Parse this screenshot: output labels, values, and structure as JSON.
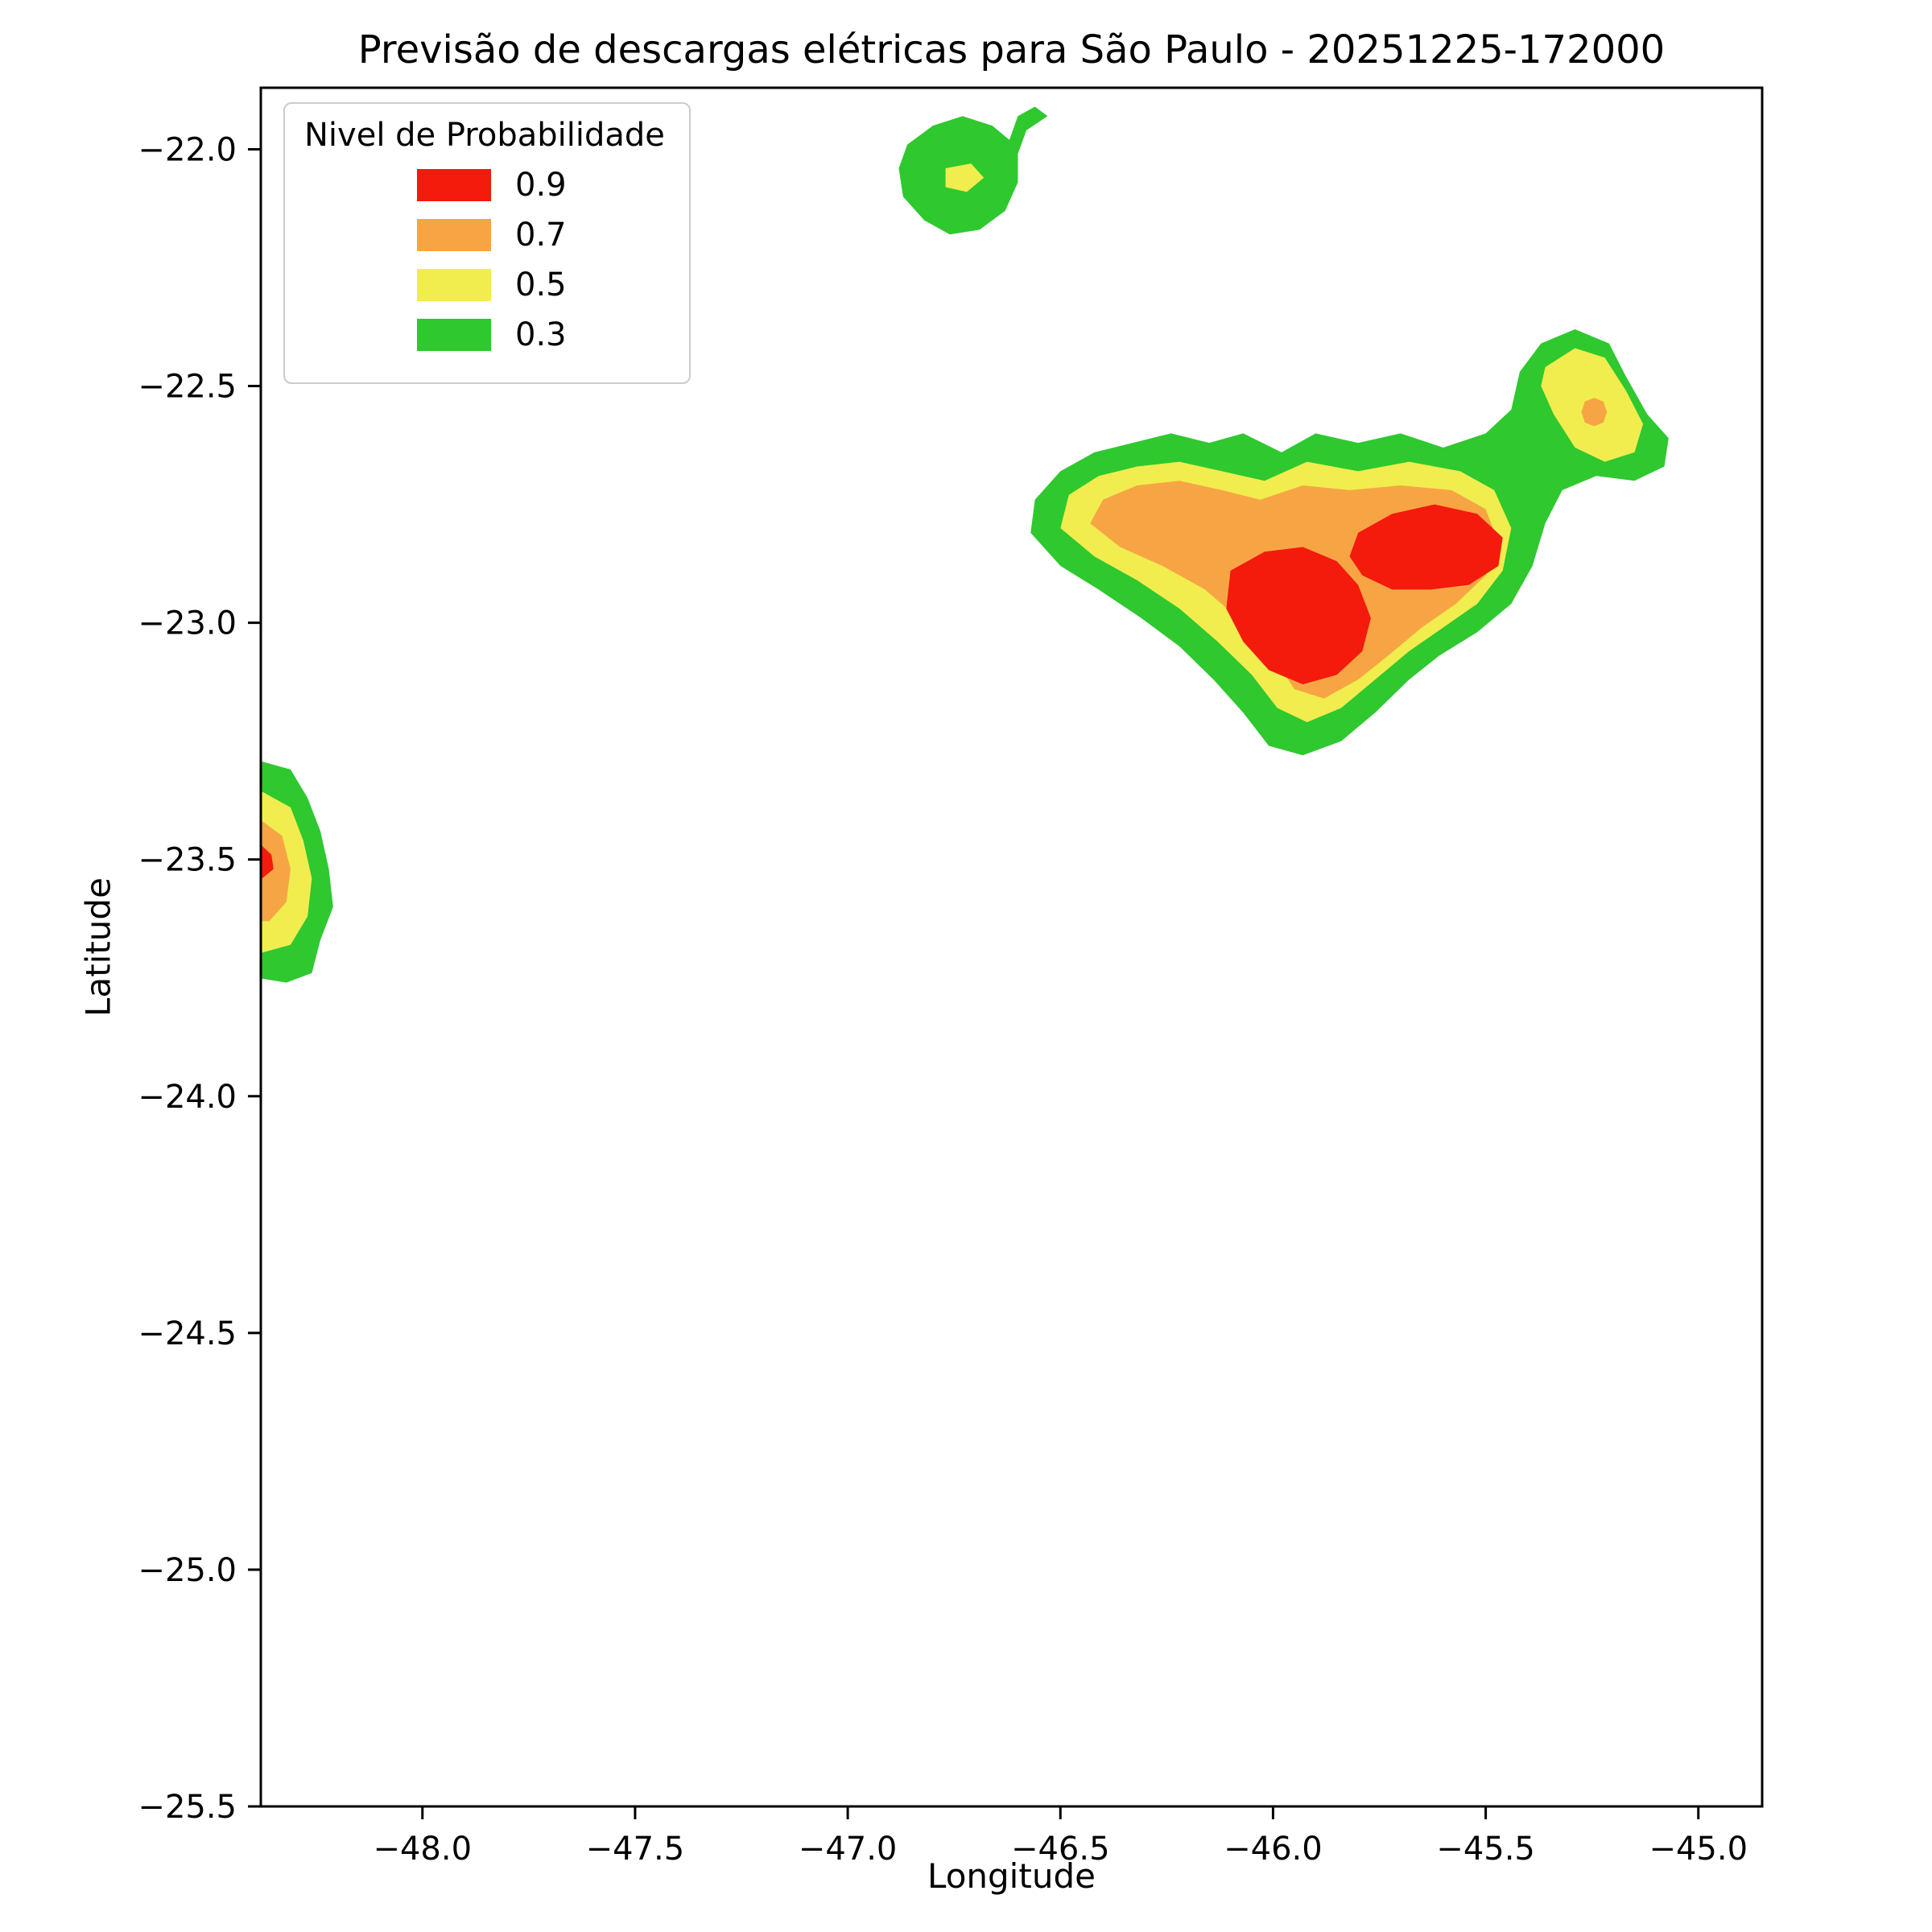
{
  "chart_data": {
    "type": "filled_contour",
    "title": "Previsão de descargas elétricas para São Paulo - 20251225-172000",
    "xlabel": "Longitude",
    "ylabel": "Latitude",
    "xlim": [
      -48.38,
      -44.85
    ],
    "ylim": [
      -25.5,
      -21.87
    ],
    "xticks": [
      -48.0,
      -47.5,
      -47.0,
      -46.5,
      -46.0,
      -45.5,
      -45.0
    ],
    "yticks": [
      -22.0,
      -22.5,
      -23.0,
      -23.5,
      -24.0,
      -24.5,
      -25.0,
      -25.5
    ],
    "xtick_labels": [
      "−48.0",
      "−47.5",
      "−47.0",
      "−46.5",
      "−46.0",
      "−45.5",
      "−45.0"
    ],
    "ytick_labels": [
      "−22.0",
      "−22.5",
      "−23.0",
      "−23.5",
      "−24.0",
      "−24.5",
      "−25.0",
      "−25.5"
    ],
    "grid": false,
    "background": "#ffffff",
    "legend": {
      "title": "Nivel de Probabilidade",
      "position": "upper left",
      "entries": [
        {
          "label": "0.9",
          "color": "#F41A0C"
        },
        {
          "label": "0.7",
          "color": "#F7A544"
        },
        {
          "label": "0.5",
          "color": "#F1ED4E"
        },
        {
          "label": "0.3",
          "color": "#2FC82F"
        }
      ]
    },
    "levels": {
      "0.3": "#2FC82F",
      "0.5": "#F1ED4E",
      "0.7": "#F7A544",
      "0.9": "#F41A0C"
    },
    "regions": [
      {
        "name": "north-cell-green",
        "level": "0.3",
        "points": [
          [
            -46.88,
            -22.04
          ],
          [
            -46.86,
            -21.99
          ],
          [
            -46.8,
            -21.95
          ],
          [
            -46.73,
            -21.93
          ],
          [
            -46.66,
            -21.95
          ],
          [
            -46.62,
            -21.98
          ],
          [
            -46.6,
            -21.93
          ],
          [
            -46.56,
            -21.91
          ],
          [
            -46.53,
            -21.93
          ],
          [
            -46.58,
            -21.96
          ],
          [
            -46.6,
            -22.01
          ],
          [
            -46.6,
            -22.07
          ],
          [
            -46.63,
            -22.13
          ],
          [
            -46.69,
            -22.17
          ],
          [
            -46.76,
            -22.18
          ],
          [
            -46.82,
            -22.15
          ],
          [
            -46.87,
            -22.1
          ]
        ]
      },
      {
        "name": "main-cell-green",
        "level": "0.3",
        "points": [
          [
            -46.57,
            -22.81
          ],
          [
            -46.56,
            -22.74
          ],
          [
            -46.5,
            -22.68
          ],
          [
            -46.42,
            -22.64
          ],
          [
            -46.33,
            -22.62
          ],
          [
            -46.24,
            -22.6
          ],
          [
            -46.15,
            -22.62
          ],
          [
            -46.07,
            -22.6
          ],
          [
            -45.98,
            -22.64
          ],
          [
            -45.9,
            -22.6
          ],
          [
            -45.8,
            -22.62
          ],
          [
            -45.7,
            -22.6
          ],
          [
            -45.6,
            -22.63
          ],
          [
            -45.5,
            -22.6
          ],
          [
            -45.44,
            -22.55
          ],
          [
            -45.42,
            -22.47
          ],
          [
            -45.37,
            -22.41
          ],
          [
            -45.29,
            -22.38
          ],
          [
            -45.21,
            -22.41
          ],
          [
            -45.17,
            -22.48
          ],
          [
            -45.12,
            -22.56
          ],
          [
            -45.07,
            -22.61
          ],
          [
            -45.08,
            -22.67
          ],
          [
            -45.15,
            -22.7
          ],
          [
            -45.24,
            -22.69
          ],
          [
            -45.32,
            -22.72
          ],
          [
            -45.36,
            -22.79
          ],
          [
            -45.39,
            -22.88
          ],
          [
            -45.44,
            -22.96
          ],
          [
            -45.52,
            -23.02
          ],
          [
            -45.61,
            -23.07
          ],
          [
            -45.68,
            -23.12
          ],
          [
            -45.76,
            -23.19
          ],
          [
            -45.84,
            -23.25
          ],
          [
            -45.93,
            -23.28
          ],
          [
            -46.01,
            -23.26
          ],
          [
            -46.07,
            -23.19
          ],
          [
            -46.14,
            -23.12
          ],
          [
            -46.22,
            -23.05
          ],
          [
            -46.31,
            -22.99
          ],
          [
            -46.41,
            -22.93
          ],
          [
            -46.5,
            -22.88
          ]
        ]
      },
      {
        "name": "west-cell-green",
        "level": "0.3",
        "points": [
          [
            -48.39,
            -23.29
          ],
          [
            -48.31,
            -23.31
          ],
          [
            -48.27,
            -23.37
          ],
          [
            -48.24,
            -23.44
          ],
          [
            -48.22,
            -23.52
          ],
          [
            -48.21,
            -23.6
          ],
          [
            -48.24,
            -23.67
          ],
          [
            -48.26,
            -23.74
          ],
          [
            -48.32,
            -23.76
          ],
          [
            -48.39,
            -23.75
          ]
        ]
      },
      {
        "name": "north-cell-yellow",
        "level": "0.5",
        "points": [
          [
            -46.77,
            -22.04
          ],
          [
            -46.71,
            -22.03
          ],
          [
            -46.68,
            -22.06
          ],
          [
            -46.72,
            -22.09
          ],
          [
            -46.77,
            -22.08
          ]
        ]
      },
      {
        "name": "main-cell-yellow",
        "level": "0.5",
        "points": [
          [
            -46.5,
            -22.8
          ],
          [
            -46.48,
            -22.73
          ],
          [
            -46.41,
            -22.69
          ],
          [
            -46.32,
            -22.67
          ],
          [
            -46.22,
            -22.66
          ],
          [
            -46.12,
            -22.68
          ],
          [
            -46.02,
            -22.7
          ],
          [
            -45.92,
            -22.66
          ],
          [
            -45.8,
            -22.68
          ],
          [
            -45.68,
            -22.66
          ],
          [
            -45.56,
            -22.68
          ],
          [
            -45.48,
            -22.72
          ],
          [
            -45.44,
            -22.8
          ],
          [
            -45.46,
            -22.89
          ],
          [
            -45.52,
            -22.96
          ],
          [
            -45.6,
            -23.01
          ],
          [
            -45.68,
            -23.06
          ],
          [
            -45.76,
            -23.12
          ],
          [
            -45.84,
            -23.18
          ],
          [
            -45.92,
            -23.21
          ],
          [
            -45.99,
            -23.18
          ],
          [
            -46.05,
            -23.11
          ],
          [
            -46.13,
            -23.04
          ],
          [
            -46.22,
            -22.97
          ],
          [
            -46.32,
            -22.91
          ],
          [
            -46.42,
            -22.86
          ]
        ]
      },
      {
        "name": "arm-yellow",
        "level": "0.5",
        "points": [
          [
            -45.36,
            -22.46
          ],
          [
            -45.29,
            -22.42
          ],
          [
            -45.22,
            -22.44
          ],
          [
            -45.17,
            -22.51
          ],
          [
            -45.13,
            -22.58
          ],
          [
            -45.15,
            -22.64
          ],
          [
            -45.22,
            -22.66
          ],
          [
            -45.29,
            -22.63
          ],
          [
            -45.34,
            -22.56
          ],
          [
            -45.37,
            -22.5
          ]
        ]
      },
      {
        "name": "west-cell-yellow",
        "level": "0.5",
        "points": [
          [
            -48.39,
            -23.35
          ],
          [
            -48.31,
            -23.39
          ],
          [
            -48.28,
            -23.46
          ],
          [
            -48.26,
            -23.54
          ],
          [
            -48.27,
            -23.62
          ],
          [
            -48.31,
            -23.68
          ],
          [
            -48.39,
            -23.7
          ]
        ]
      },
      {
        "name": "main-cell-orange",
        "level": "0.7",
        "points": [
          [
            -46.43,
            -22.79
          ],
          [
            -46.4,
            -22.74
          ],
          [
            -46.32,
            -22.71
          ],
          [
            -46.22,
            -22.7
          ],
          [
            -46.12,
            -22.72
          ],
          [
            -46.03,
            -22.74
          ],
          [
            -45.93,
            -22.71
          ],
          [
            -45.82,
            -22.72
          ],
          [
            -45.7,
            -22.71
          ],
          [
            -45.58,
            -22.72
          ],
          [
            -45.5,
            -22.76
          ],
          [
            -45.47,
            -22.83
          ],
          [
            -45.5,
            -22.9
          ],
          [
            -45.57,
            -22.96
          ],
          [
            -45.65,
            -23.01
          ],
          [
            -45.73,
            -23.07
          ],
          [
            -45.8,
            -23.12
          ],
          [
            -45.88,
            -23.16
          ],
          [
            -45.95,
            -23.14
          ],
          [
            -46.0,
            -23.07
          ],
          [
            -46.07,
            -23.0
          ],
          [
            -46.16,
            -22.93
          ],
          [
            -46.26,
            -22.88
          ],
          [
            -46.36,
            -22.84
          ]
        ]
      },
      {
        "name": "arm-orange-dot",
        "level": "0.7",
        "points": [
          [
            -45.275,
            -22.555
          ],
          [
            -45.267,
            -22.533
          ],
          [
            -45.245,
            -22.525
          ],
          [
            -45.223,
            -22.533
          ],
          [
            -45.215,
            -22.555
          ],
          [
            -45.223,
            -22.577
          ],
          [
            -45.245,
            -22.585
          ],
          [
            -45.267,
            -22.577
          ]
        ]
      },
      {
        "name": "west-cell-orange",
        "level": "0.7",
        "points": [
          [
            -48.39,
            -23.41
          ],
          [
            -48.33,
            -23.45
          ],
          [
            -48.31,
            -23.52
          ],
          [
            -48.32,
            -23.59
          ],
          [
            -48.36,
            -23.63
          ],
          [
            -48.39,
            -23.63
          ]
        ]
      },
      {
        "name": "main-cell-red-west",
        "level": "0.9",
        "points": [
          [
            -46.1,
            -22.89
          ],
          [
            -46.02,
            -22.85
          ],
          [
            -45.93,
            -22.84
          ],
          [
            -45.85,
            -22.87
          ],
          [
            -45.8,
            -22.92
          ],
          [
            -45.77,
            -22.99
          ],
          [
            -45.79,
            -23.06
          ],
          [
            -45.85,
            -23.11
          ],
          [
            -45.93,
            -23.13
          ],
          [
            -46.01,
            -23.1
          ],
          [
            -46.07,
            -23.04
          ],
          [
            -46.11,
            -22.97
          ]
        ]
      },
      {
        "name": "main-cell-red-east",
        "level": "0.9",
        "points": [
          [
            -45.8,
            -22.81
          ],
          [
            -45.72,
            -22.77
          ],
          [
            -45.62,
            -22.75
          ],
          [
            -45.52,
            -22.77
          ],
          [
            -45.46,
            -22.82
          ],
          [
            -45.47,
            -22.88
          ],
          [
            -45.54,
            -22.92
          ],
          [
            -45.63,
            -22.93
          ],
          [
            -45.72,
            -22.93
          ],
          [
            -45.79,
            -22.9
          ],
          [
            -45.82,
            -22.86
          ]
        ]
      },
      {
        "name": "west-cell-red",
        "level": "0.9",
        "points": [
          [
            -48.39,
            -23.46
          ],
          [
            -48.355,
            -23.49
          ],
          [
            -48.35,
            -23.52
          ],
          [
            -48.39,
            -23.55
          ]
        ]
      }
    ]
  }
}
